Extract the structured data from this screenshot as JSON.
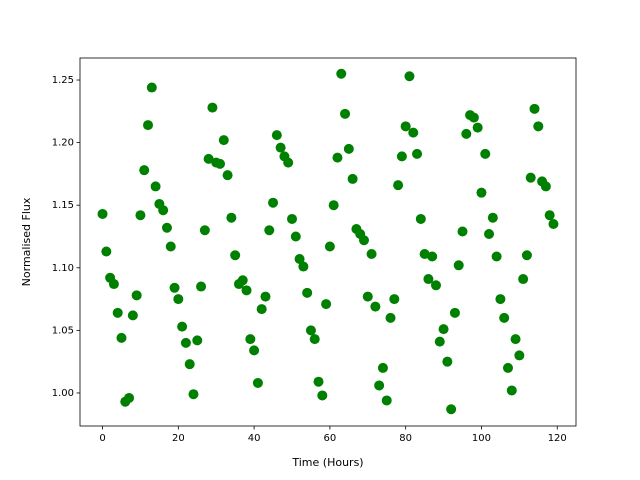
{
  "chart_data": {
    "type": "scatter",
    "xlabel": "Time (Hours)",
    "ylabel": "Normalised Flux",
    "x": [
      0,
      1,
      2,
      3,
      4,
      5,
      6,
      7,
      8,
      9,
      10,
      11,
      12,
      13,
      14,
      15,
      16,
      17,
      18,
      19,
      20,
      21,
      22,
      23,
      24,
      25,
      26,
      27,
      28,
      29,
      30,
      31,
      32,
      33,
      34,
      35,
      36,
      37,
      38,
      39,
      40,
      41,
      42,
      43,
      44,
      45,
      46,
      47,
      48,
      49,
      50,
      51,
      52,
      53,
      54,
      55,
      56,
      57,
      58,
      59,
      60,
      61,
      62,
      63,
      64,
      65,
      66,
      67,
      68,
      69,
      70,
      71,
      72,
      73,
      74,
      75,
      76,
      77,
      78,
      79,
      80,
      81,
      82,
      83,
      84,
      85,
      86,
      87,
      88,
      89,
      90,
      91,
      92,
      93,
      94,
      95,
      96,
      97,
      98,
      99,
      100,
      101,
      102,
      103,
      104,
      105,
      106,
      107,
      108,
      109,
      110,
      111,
      112,
      113,
      114,
      115,
      116,
      117,
      118,
      119
    ],
    "series": [
      {
        "color": "#008000",
        "values": [
          1.143,
          1.113,
          1.092,
          1.087,
          1.064,
          1.044,
          0.993,
          0.996,
          1.062,
          1.078,
          1.142,
          1.178,
          1.214,
          1.244,
          1.165,
          1.151,
          1.146,
          1.132,
          1.117,
          1.084,
          1.075,
          1.053,
          1.04,
          1.023,
          0.999,
          1.042,
          1.085,
          1.13,
          1.187,
          1.228,
          1.184,
          1.183,
          1.202,
          1.174,
          1.14,
          1.11,
          1.087,
          1.09,
          1.082,
          1.043,
          1.034,
          1.008,
          1.067,
          1.077,
          1.13,
          1.152,
          1.206,
          1.196,
          1.189,
          1.184,
          1.139,
          1.125,
          1.107,
          1.101,
          1.08,
          1.05,
          1.043,
          1.009,
          0.998,
          1.071,
          1.117,
          1.15,
          1.188,
          1.255,
          1.223,
          1.195,
          1.171,
          1.131,
          1.127,
          1.122,
          1.077,
          1.111,
          1.069,
          1.006,
          1.02,
          0.994,
          1.06,
          1.075,
          1.166,
          1.189,
          1.213,
          1.253,
          1.208,
          1.191,
          1.139,
          1.111,
          1.091,
          1.109,
          1.086,
          1.041,
          1.051,
          1.025,
          0.987,
          1.064,
          1.102,
          1.129,
          1.207,
          1.222,
          1.22,
          1.212,
          1.16,
          1.191,
          1.127,
          1.14,
          1.109,
          1.075,
          1.06,
          1.02,
          1.002,
          1.043,
          1.03,
          1.091,
          1.11,
          1.172,
          1.227,
          1.213,
          1.169,
          1.165,
          1.142,
          1.135
        ]
      }
    ],
    "xlim": [
      -5.95,
      124.95
    ],
    "ylim": [
      0.9736,
      1.2676
    ],
    "xticks": [
      0,
      20,
      40,
      60,
      80,
      100,
      120
    ],
    "yticks": [
      {
        "value": 1.0,
        "label": "1.00"
      },
      {
        "value": 1.05,
        "label": "1.05"
      },
      {
        "value": 1.1,
        "label": "1.10"
      },
      {
        "value": 1.15,
        "label": "1.15"
      },
      {
        "value": 1.2,
        "label": "1.20"
      },
      {
        "value": 1.25,
        "label": "1.25"
      }
    ]
  }
}
